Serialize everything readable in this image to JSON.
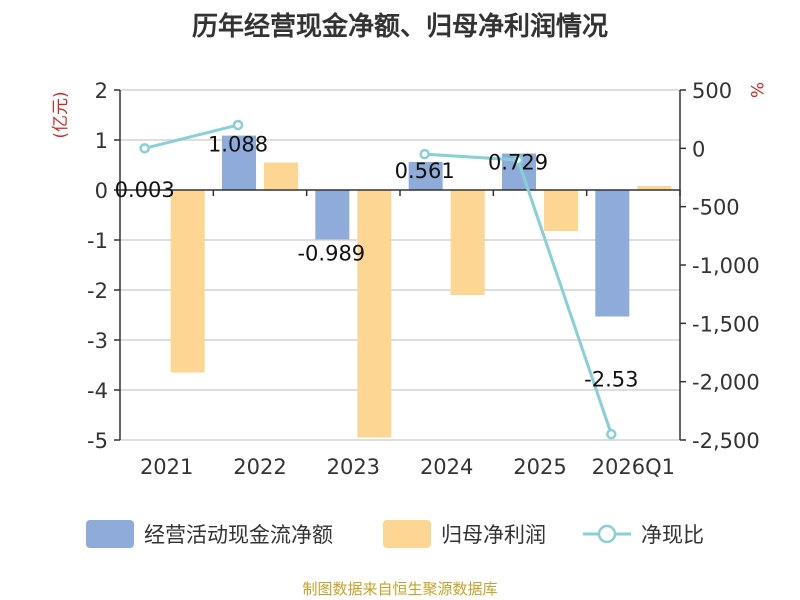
{
  "chart_data": {
    "type": "bar",
    "title": "历年经营现金净额、归母净利润情况",
    "categories": [
      "2021",
      "2022",
      "2023",
      "2024",
      "2025",
      "2026Q1"
    ],
    "ylabel_left": "(亿元)",
    "ylabel_right": "%",
    "ylim_left": [
      -5,
      2
    ],
    "yticks_left": [
      "2",
      "1",
      "0",
      "-1",
      "-2",
      "-3",
      "-4",
      "-5"
    ],
    "ylim_right": [
      -2500,
      500
    ],
    "yticks_right": [
      "500",
      "0",
      "-500",
      "-1,000",
      "-1,500",
      "-2,000",
      "-2,500"
    ],
    "grid": true,
    "legend_position": "bottom",
    "series": [
      {
        "name": "经营活动现金流净额",
        "kind": "bar",
        "axis": "left",
        "color": "#8eabd9",
        "values": [
          0.003,
          1.088,
          -0.989,
          0.561,
          0.729,
          -2.53
        ],
        "labels": [
          "0.003",
          "1.088",
          "-0.989",
          "0.561",
          "0.729",
          "-2.53"
        ]
      },
      {
        "name": "归母净利润",
        "kind": "bar",
        "axis": "left",
        "color": "#fdd694",
        "values": [
          -3.65,
          0.55,
          -4.95,
          -2.1,
          -0.82,
          0.08
        ]
      },
      {
        "name": "净现比",
        "kind": "line",
        "axis": "right",
        "color": "#86d0d6",
        "values": [
          0,
          200,
          null,
          -50,
          -100,
          -2450
        ]
      }
    ],
    "footer": "制图数据来自恒生聚源数据库"
  }
}
